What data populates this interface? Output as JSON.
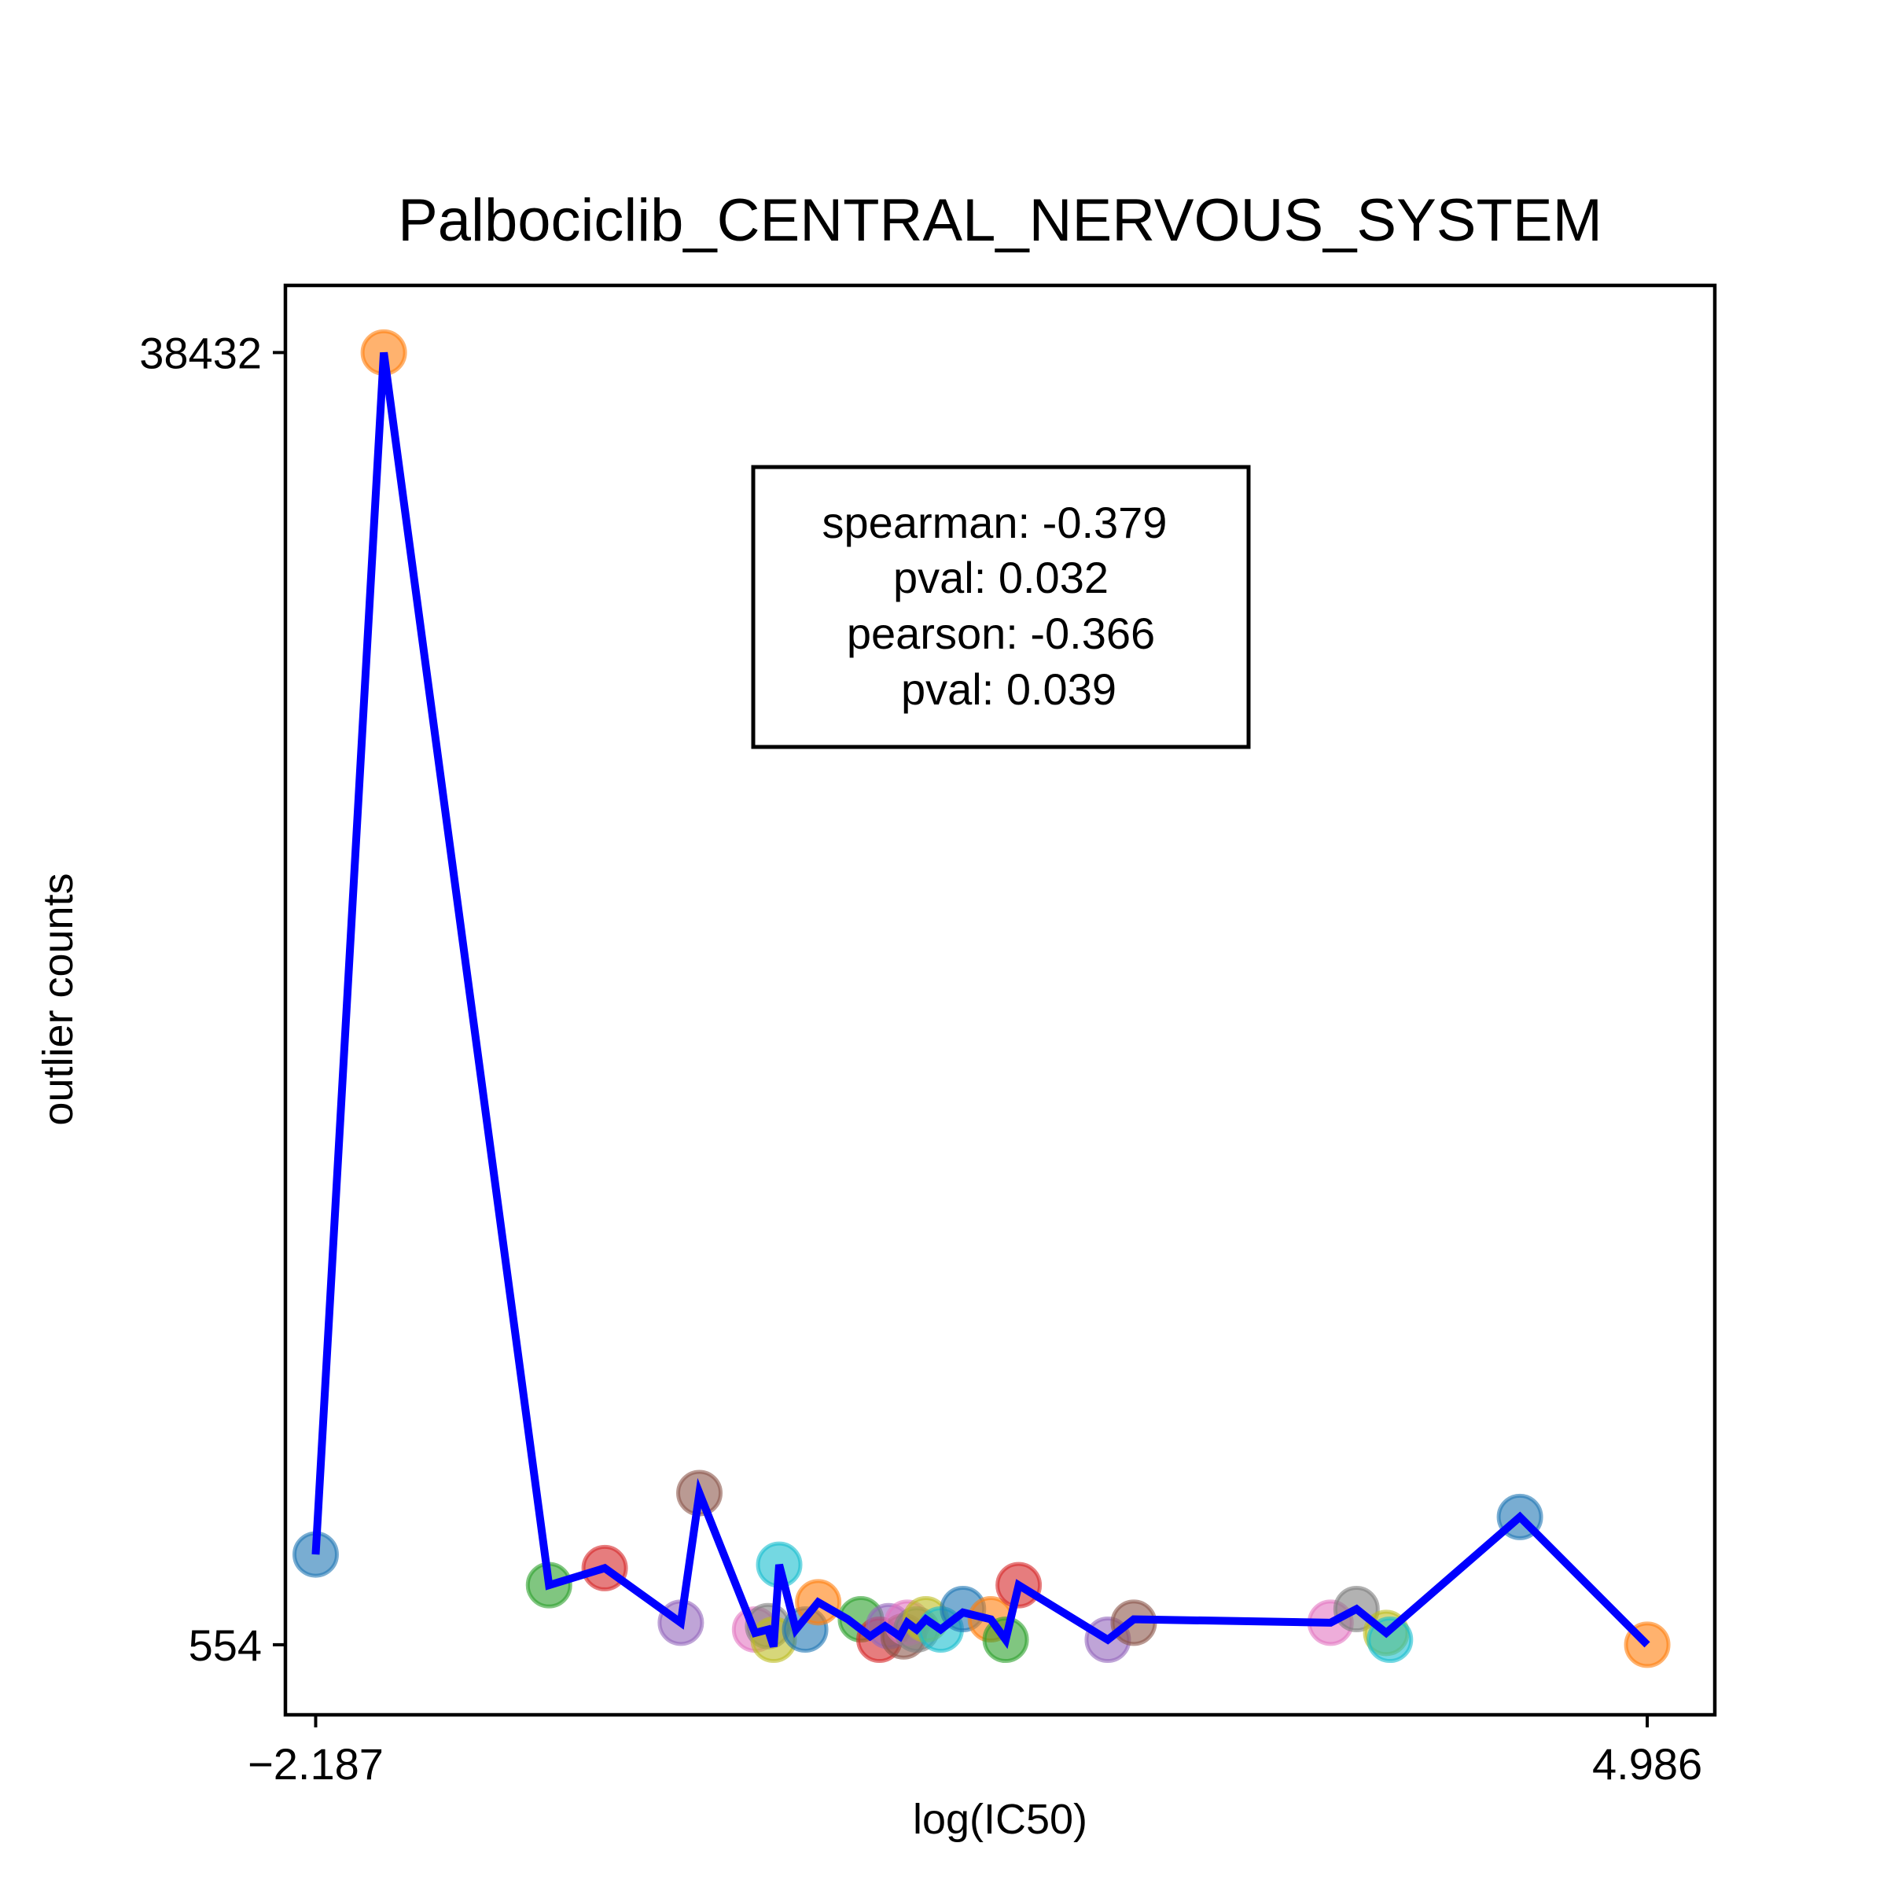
{
  "chart_data": {
    "type": "scatter",
    "title": "Palbociclib_CENTRAL_NERVOUS_SYSTEM",
    "xlabel": "log(IC50)",
    "ylabel": "outlier counts",
    "xlim": [
      -2.35,
      5.35
    ],
    "ylim": [
      -1500,
      40400
    ],
    "xticks": [
      -2.187,
      4.986
    ],
    "xtick_labels": [
      "−2.187",
      "4.986"
    ],
    "yticks": [
      554,
      38432
    ],
    "ytick_labels": [
      "554",
      "38432"
    ],
    "grid": false,
    "legend": "none",
    "line_color": "#0000ff",
    "annotation": {
      "lines": [
        "spearman: -0.379",
        "pval: 0.032",
        "pearson: -0.366",
        "pval: 0.039"
      ]
    },
    "points": [
      {
        "x": -2.187,
        "y": 3200,
        "color": "#1f77b4"
      },
      {
        "x": -1.82,
        "y": 38432,
        "color": "#ff7f0e"
      },
      {
        "x": -0.93,
        "y": 2300,
        "color": "#2ca02c"
      },
      {
        "x": -0.63,
        "y": 2800,
        "color": "#d62728"
      },
      {
        "x": -0.22,
        "y": 1200,
        "color": "#9467bd"
      },
      {
        "x": -0.12,
        "y": 5000,
        "color": "#8c564b"
      },
      {
        "x": 0.18,
        "y": 1000,
        "color": "#e377c2"
      },
      {
        "x": 0.25,
        "y": 1100,
        "color": "#7f7f7f"
      },
      {
        "x": 0.28,
        "y": 700,
        "color": "#bcbd22"
      },
      {
        "x": 0.31,
        "y": 2900,
        "color": "#17becf"
      },
      {
        "x": 0.45,
        "y": 1000,
        "color": "#1f77b4"
      },
      {
        "x": 0.52,
        "y": 1800,
        "color": "#ff7f0e"
      },
      {
        "x": 0.75,
        "y": 1300,
        "color": "#2ca02c"
      },
      {
        "x": 0.85,
        "y": 700,
        "color": "#d62728"
      },
      {
        "x": 0.9,
        "y": 1100,
        "color": "#9467bd"
      },
      {
        "x": 0.98,
        "y": 800,
        "color": "#8c564b"
      },
      {
        "x": 1.0,
        "y": 1200,
        "color": "#e377c2"
      },
      {
        "x": 1.05,
        "y": 1000,
        "color": "#7f7f7f"
      },
      {
        "x": 1.1,
        "y": 1300,
        "color": "#bcbd22"
      },
      {
        "x": 1.18,
        "y": 1000,
        "color": "#17becf"
      },
      {
        "x": 1.3,
        "y": 1600,
        "color": "#1f77b4"
      },
      {
        "x": 1.45,
        "y": 1300,
        "color": "#ff7f0e"
      },
      {
        "x": 1.53,
        "y": 700,
        "color": "#2ca02c"
      },
      {
        "x": 1.6,
        "y": 2300,
        "color": "#d62728"
      },
      {
        "x": 2.08,
        "y": 700,
        "color": "#9467bd"
      },
      {
        "x": 2.22,
        "y": 1200,
        "color": "#8c564b"
      },
      {
        "x": 3.28,
        "y": 1200,
        "color": "#e377c2"
      },
      {
        "x": 3.42,
        "y": 1600,
        "color": "#7f7f7f"
      },
      {
        "x": 3.58,
        "y": 900,
        "color": "#bcbd22"
      },
      {
        "x": 3.6,
        "y": 700,
        "color": "#17becf"
      },
      {
        "x": 4.3,
        "y": 4300,
        "color": "#1f77b4"
      },
      {
        "x": 4.986,
        "y": 554,
        "color": "#ff7f0e"
      }
    ],
    "line": [
      [
        -2.187,
        3200
      ],
      [
        -1.82,
        38432
      ],
      [
        -0.93,
        2300
      ],
      [
        -0.63,
        2800
      ],
      [
        -0.22,
        1200
      ],
      [
        -0.12,
        5000
      ],
      [
        0.18,
        900
      ],
      [
        0.25,
        1000
      ],
      [
        0.28,
        500
      ],
      [
        0.31,
        2900
      ],
      [
        0.4,
        1000
      ],
      [
        0.52,
        1800
      ],
      [
        0.68,
        1300
      ],
      [
        0.8,
        800
      ],
      [
        0.88,
        1100
      ],
      [
        0.96,
        800
      ],
      [
        1.0,
        1200
      ],
      [
        1.05,
        1000
      ],
      [
        1.1,
        1300
      ],
      [
        1.18,
        1000
      ],
      [
        1.3,
        1500
      ],
      [
        1.45,
        1300
      ],
      [
        1.53,
        700
      ],
      [
        1.6,
        2300
      ],
      [
        2.08,
        700
      ],
      [
        2.22,
        1300
      ],
      [
        3.28,
        1200
      ],
      [
        3.42,
        1600
      ],
      [
        3.58,
        900
      ],
      [
        4.3,
        4300
      ],
      [
        4.986,
        554
      ]
    ]
  }
}
